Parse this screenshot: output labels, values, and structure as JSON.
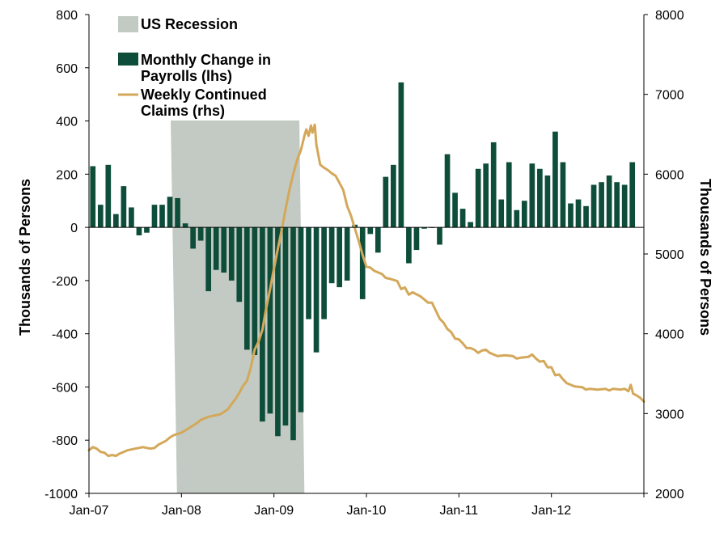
{
  "chart_data": {
    "type": "bar",
    "title": "",
    "left_axis": {
      "label": "Thousands of Persons",
      "range": [
        -1000,
        800
      ],
      "ticks": [
        "800",
        "600",
        "400",
        "200",
        "0",
        "-200",
        "-400",
        "-600",
        "-800",
        "-1000"
      ],
      "tick_values": [
        800,
        600,
        400,
        200,
        0,
        -200,
        -400,
        -600,
        -800,
        -1000
      ]
    },
    "right_axis": {
      "label": "Thousands of Persons",
      "range": [
        2000,
        8000
      ],
      "ticks": [
        "8000",
        "7000",
        "6000",
        "5000",
        "4000",
        "3000",
        "2000"
      ],
      "tick_values": [
        8000,
        7000,
        6000,
        5000,
        4000,
        3000,
        2000
      ]
    },
    "x_axis": {
      "labels": [
        "Jan-07",
        "Jan-08",
        "Jan-09",
        "Jan-10",
        "Jan-11",
        "Jan-12"
      ],
      "label_month_index": [
        0,
        12,
        24,
        36,
        48,
        60
      ],
      "range_months": [
        0,
        72
      ]
    },
    "legend": {
      "placement": "top-left",
      "items": [
        {
          "label": "US Recession",
          "color": "#c2cac3",
          "kind": "area"
        },
        {
          "label": "Monthly Change in Payrolls (lhs)",
          "color": "#0e4d3a",
          "kind": "bar"
        },
        {
          "label": "Weekly Continued Claims (rhs)",
          "color": "#d4a85a",
          "kind": "line"
        }
      ]
    },
    "recession": {
      "start_month": 11,
      "end_month": 29
    },
    "series": [
      {
        "name": "Monthly Change in Payrolls (lhs)",
        "axis": "left",
        "color": "#0e4d3a",
        "start": "Jan-07",
        "values": [
          230,
          85,
          235,
          50,
          155,
          75,
          -30,
          -20,
          85,
          85,
          115,
          110,
          15,
          -80,
          -50,
          -240,
          -160,
          -170,
          -200,
          -280,
          -460,
          -480,
          -730,
          -700,
          -785,
          -745,
          -800,
          -695,
          -345,
          -470,
          -345,
          -210,
          -225,
          -200,
          10,
          -270,
          -25,
          -95,
          190,
          235,
          545,
          -135,
          -85,
          -5,
          0,
          -65,
          275,
          130,
          70,
          20,
          220,
          240,
          320,
          105,
          245,
          65,
          100,
          240,
          220,
          195,
          360,
          245,
          90,
          105,
          80,
          160,
          170,
          195,
          170,
          160,
          245
        ]
      },
      {
        "name": "Weekly Continued Claims (rhs)",
        "axis": "right",
        "color": "#d4a85a",
        "points": [
          [
            0,
            2540
          ],
          [
            0.5,
            2580
          ],
          [
            1,
            2560
          ],
          [
            1.5,
            2520
          ],
          [
            2,
            2510
          ],
          [
            2.5,
            2470
          ],
          [
            3,
            2480
          ],
          [
            3.5,
            2470
          ],
          [
            4,
            2500
          ],
          [
            4.5,
            2520
          ],
          [
            5,
            2540
          ],
          [
            6,
            2560
          ],
          [
            7,
            2580
          ],
          [
            8,
            2560
          ],
          [
            8.5,
            2570
          ],
          [
            9,
            2610
          ],
          [
            10,
            2660
          ],
          [
            10.5,
            2700
          ],
          [
            11,
            2730
          ],
          [
            12,
            2760
          ],
          [
            12.5,
            2790
          ],
          [
            13,
            2820
          ],
          [
            13.5,
            2850
          ],
          [
            14,
            2880
          ],
          [
            14.5,
            2920
          ],
          [
            15,
            2940
          ],
          [
            15.5,
            2960
          ],
          [
            16,
            2970
          ],
          [
            17,
            2990
          ],
          [
            18,
            3050
          ],
          [
            18.5,
            3120
          ],
          [
            19,
            3180
          ],
          [
            19.5,
            3260
          ],
          [
            20,
            3350
          ],
          [
            20.5,
            3410
          ],
          [
            21,
            3580
          ],
          [
            21.5,
            3800
          ],
          [
            22,
            3900
          ],
          [
            22.5,
            4050
          ],
          [
            23,
            4320
          ],
          [
            23.5,
            4560
          ],
          [
            24,
            4820
          ],
          [
            24.5,
            5060
          ],
          [
            25,
            5300
          ],
          [
            25.5,
            5560
          ],
          [
            26,
            5800
          ],
          [
            26.5,
            6000
          ],
          [
            27,
            6180
          ],
          [
            27.5,
            6300
          ],
          [
            28,
            6500
          ],
          [
            28.2,
            6560
          ],
          [
            28.5,
            6480
          ],
          [
            28.8,
            6610
          ],
          [
            29,
            6520
          ],
          [
            29.3,
            6620
          ],
          [
            29.5,
            6370
          ],
          [
            30,
            6120
          ],
          [
            30.5,
            6080
          ],
          [
            31,
            6050
          ],
          [
            31.5,
            6010
          ],
          [
            32,
            5980
          ],
          [
            32.5,
            5890
          ],
          [
            33,
            5800
          ],
          [
            33.5,
            5600
          ],
          [
            34,
            5480
          ],
          [
            34.5,
            5320
          ],
          [
            35,
            5160
          ],
          [
            35.5,
            4990
          ],
          [
            36,
            4840
          ],
          [
            36.5,
            4830
          ],
          [
            37,
            4790
          ],
          [
            38,
            4750
          ],
          [
            38.5,
            4700
          ],
          [
            39,
            4690
          ],
          [
            40,
            4660
          ],
          [
            40.5,
            4560
          ],
          [
            41,
            4580
          ],
          [
            41.5,
            4490
          ],
          [
            42,
            4520
          ],
          [
            43,
            4470
          ],
          [
            43.5,
            4430
          ],
          [
            44,
            4390
          ],
          [
            44.5,
            4390
          ],
          [
            45,
            4290
          ],
          [
            45.5,
            4190
          ],
          [
            46,
            4140
          ],
          [
            46.5,
            4060
          ],
          [
            47,
            4020
          ],
          [
            47.5,
            3940
          ],
          [
            48,
            3930
          ],
          [
            48.5,
            3880
          ],
          [
            49,
            3820
          ],
          [
            49.5,
            3820
          ],
          [
            50,
            3800
          ],
          [
            50.5,
            3760
          ],
          [
            51,
            3790
          ],
          [
            51.5,
            3800
          ],
          [
            52,
            3760
          ],
          [
            52.5,
            3740
          ],
          [
            53,
            3720
          ],
          [
            54,
            3730
          ],
          [
            55,
            3720
          ],
          [
            55.5,
            3690
          ],
          [
            56,
            3700
          ],
          [
            57,
            3710
          ],
          [
            57.5,
            3740
          ],
          [
            58,
            3690
          ],
          [
            58.5,
            3650
          ],
          [
            59,
            3660
          ],
          [
            59.5,
            3580
          ],
          [
            60,
            3580
          ],
          [
            60.5,
            3480
          ],
          [
            61,
            3490
          ],
          [
            61.5,
            3430
          ],
          [
            62,
            3380
          ],
          [
            62.5,
            3360
          ],
          [
            63,
            3340
          ],
          [
            64,
            3330
          ],
          [
            64.5,
            3300
          ],
          [
            65,
            3310
          ],
          [
            66,
            3300
          ],
          [
            67,
            3310
          ],
          [
            67.5,
            3290
          ],
          [
            68,
            3310
          ],
          [
            69,
            3300
          ],
          [
            69.5,
            3310
          ],
          [
            70,
            3280
          ],
          [
            70.3,
            3360
          ],
          [
            70.6,
            3250
          ],
          [
            71,
            3230
          ],
          [
            71.5,
            3200
          ],
          [
            72,
            3150
          ]
        ]
      }
    ]
  }
}
